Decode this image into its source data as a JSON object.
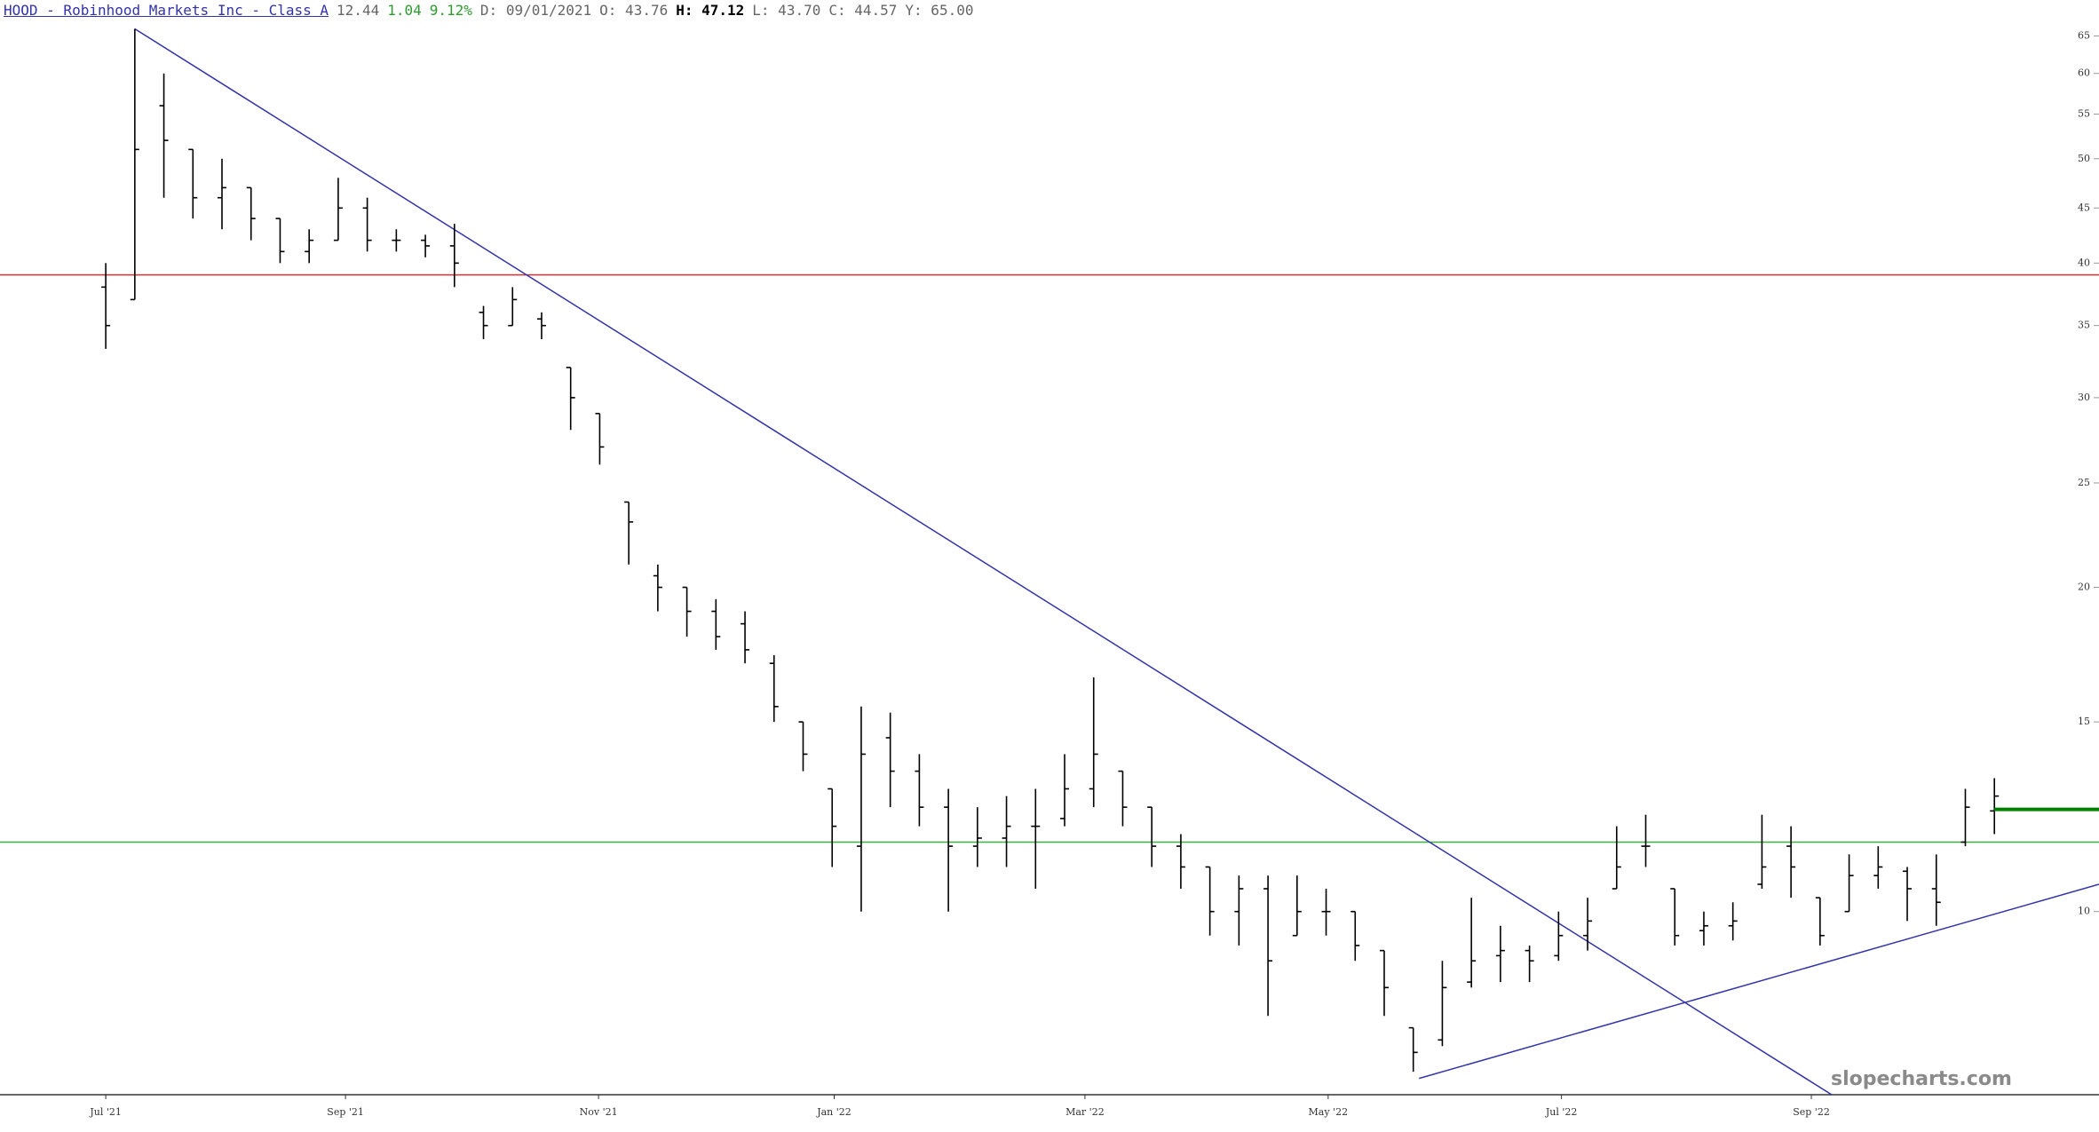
{
  "header": {
    "symbol": "HOOD - Robinhood Markets Inc - Class A",
    "last": "12.44",
    "change": "1.04",
    "change_pct": "9.12%",
    "date": "D: 09/01/2021",
    "open": "O: 43.76",
    "high": "H: 47.12",
    "low": "L: 43.70",
    "close": "C: 44.57",
    "y": "Y: 65.00"
  },
  "watermark": "slopecharts.com",
  "chart_data": {
    "type": "ohlc",
    "color": "#000000",
    "log_scale": true,
    "xlim": [
      -3.64,
      68.6
    ],
    "ylim": [
      6.76,
      70.2
    ],
    "yticks": [
      10,
      15,
      20,
      25,
      30,
      35,
      40,
      45,
      50,
      55,
      60,
      65
    ],
    "xticks": [
      {
        "value": 0,
        "label": "Jul '21"
      },
      {
        "value": 8.25,
        "label": "Sep '21"
      },
      {
        "value": 16.96,
        "label": "Nov '21"
      },
      {
        "value": 25.07,
        "label": "Jan '22"
      },
      {
        "value": 33.7,
        "label": "Mar '22"
      },
      {
        "value": 42.07,
        "label": "May '22"
      },
      {
        "value": 50.1,
        "label": "Jul '22"
      },
      {
        "value": 58.7,
        "label": "Sep '22"
      }
    ],
    "open": [
      38,
      37,
      56,
      51,
      46,
      47,
      44,
      41,
      42,
      45,
      42,
      42,
      41.5,
      36,
      35,
      35.5,
      32,
      29,
      24,
      20.5,
      20,
      19,
      18.5,
      17,
      15,
      13,
      11.5,
      14.5,
      13.5,
      12.5,
      11.5,
      11.7,
      12,
      12.2,
      13,
      13.5,
      12.5,
      11.5,
      11,
      10,
      10.5,
      9.5,
      10,
      10,
      9.2,
      7.8,
      7.6,
      8.6,
      9.1,
      9.2,
      9.1,
      9.5,
      10.5,
      11.5,
      10.5,
      9.6,
      9.7,
      10.6,
      11.5,
      10.3,
      10,
      10.8,
      10.9,
      10.5,
      11.6,
      12.4
    ],
    "high": [
      40,
      66,
      60,
      51,
      50,
      47,
      44,
      43,
      48,
      46,
      43,
      42.5,
      43.5,
      36.5,
      38,
      36,
      32,
      29,
      24,
      21,
      20,
      19.5,
      19,
      17.3,
      15,
      13,
      15.5,
      15.3,
      14,
      13,
      12.5,
      12.8,
      13,
      14,
      16.5,
      13.5,
      12.5,
      11.8,
      11,
      10.8,
      10.8,
      10.8,
      10.5,
      10,
      9.2,
      7.8,
      9,
      10.3,
      9.7,
      9.3,
      10,
      10.3,
      12,
      12.3,
      10.5,
      10,
      10.2,
      12.3,
      12,
      10.3,
      11.3,
      11.5,
      11,
      11.3,
      13,
      13.3
    ],
    "low": [
      33.3,
      37,
      46,
      44,
      43,
      42,
      40,
      40,
      42,
      41,
      41,
      40.5,
      38,
      34,
      35,
      34,
      28,
      26,
      21,
      19,
      18,
      17.5,
      17,
      15,
      13.5,
      11,
      10,
      12.5,
      12,
      10,
      11,
      11,
      10.5,
      12,
      12.5,
      12,
      11,
      10.5,
      9.5,
      9.3,
      8,
      9.5,
      9.5,
      9,
      8,
      7.1,
      7.5,
      8.5,
      8.6,
      8.6,
      9,
      9.2,
      10.5,
      11,
      9.3,
      9.3,
      9.4,
      10.5,
      10.3,
      9.3,
      10,
      10.5,
      9.8,
      9.7,
      11.5,
      11.8
    ],
    "close": [
      35,
      51,
      52,
      46,
      47,
      44,
      41,
      42,
      45,
      42,
      42,
      41.5,
      40,
      35,
      37,
      35,
      30,
      27,
      23,
      20,
      19,
      18,
      17.5,
      15.5,
      14,
      12,
      14,
      13.5,
      12.5,
      11.5,
      11.7,
      12,
      12,
      13,
      14,
      12.5,
      11.5,
      11,
      10,
      10.5,
      9,
      10,
      10,
      9.3,
      8.5,
      7.4,
      8.5,
      9,
      9.2,
      9,
      9.5,
      9.8,
      11,
      11.5,
      9.5,
      9.7,
      9.8,
      11,
      11,
      9.5,
      10.8,
      11,
      10.5,
      10.2,
      12.5,
      12.8
    ],
    "trend_lines": [
      {
        "color": "#3333aa",
        "points": [
          [
            1,
            66
          ],
          [
            59.4,
            6.76
          ]
        ]
      },
      {
        "color": "#3333aa",
        "points": [
          [
            45.2,
            7.0
          ],
          [
            68.6,
            10.6
          ]
        ]
      }
    ],
    "hlines": [
      {
        "value": 39,
        "color": "#e03030"
      },
      {
        "value": 11.6,
        "color": "#40b040"
      }
    ],
    "last_line": {
      "value": 12.44,
      "color": "#008000",
      "from": 65
    }
  }
}
